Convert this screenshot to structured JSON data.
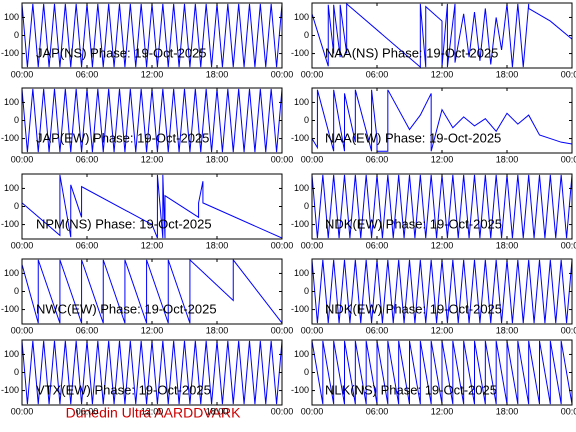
{
  "chart_data": [
    {
      "type": "line",
      "title": "JAP(NS) Phase: 19-Oct-2025",
      "color": "#0000ff",
      "xlim": [
        0,
        24
      ],
      "ylim": [
        -180,
        180
      ],
      "xticks": [
        {
          "value": 0,
          "label": "00:00"
        },
        {
          "value": 6,
          "label": "06:00"
        },
        {
          "value": 12,
          "label": "12:00"
        },
        {
          "value": 18,
          "label": "18:00"
        },
        {
          "value": 24,
          "label": "00:00"
        }
      ],
      "yticks": [
        100,
        0,
        -100
      ],
      "x": [
        0,
        0.5,
        1,
        1.5,
        2,
        2.5,
        3,
        3.5,
        4,
        4.5,
        5,
        5.5,
        6,
        6.5,
        7,
        7.5,
        8,
        8.5,
        9,
        9.5,
        10,
        10.5,
        11,
        11.5,
        12,
        12.5,
        13,
        13.5,
        14,
        14.5,
        15,
        15.5,
        16,
        16.5,
        17,
        17.5,
        18,
        18.5,
        19,
        19.5,
        20,
        20.5,
        21,
        21.5,
        22,
        22.5,
        23,
        23.5,
        24
      ],
      "values": [
        175,
        -175,
        175,
        -175,
        175,
        -175,
        175,
        -175,
        175,
        -175,
        175,
        -175,
        175,
        -175,
        175,
        -175,
        175,
        -175,
        175,
        -175,
        175,
        -175,
        175,
        -175,
        175,
        -175,
        175,
        -175,
        175,
        -175,
        175,
        -175,
        175,
        -175,
        175,
        -175,
        175,
        -175,
        175,
        -175,
        175,
        -175,
        175,
        -175,
        175,
        -175,
        175,
        -175,
        175
      ]
    },
    {
      "type": "line",
      "title": "NAA(NS) Phase: 19-Oct-2025",
      "color": "#0000ff",
      "xlim": [
        0,
        24
      ],
      "ylim": [
        -180,
        180
      ],
      "xticks": [
        {
          "value": 0,
          "label": "00:00"
        },
        {
          "value": 6,
          "label": "06:00"
        },
        {
          "value": 12,
          "label": "12:00"
        },
        {
          "value": 18,
          "label": "18:00"
        },
        {
          "value": 24,
          "label": "00:00"
        }
      ],
      "yticks": [
        100,
        0,
        -100
      ],
      "x": [
        0,
        1.5,
        1.5,
        2,
        2,
        2.6,
        2.6,
        3.2,
        3.2,
        10,
        10,
        10.5,
        10.5,
        12,
        12,
        12.5,
        12.5,
        13.2,
        13.2,
        14,
        14.5,
        15,
        15.5,
        16,
        16.5,
        17,
        17.5,
        18,
        18.5,
        19,
        19.5,
        20,
        20,
        22,
        24
      ],
      "values": [
        120,
        -170,
        170,
        -100,
        170,
        -120,
        170,
        -100,
        175,
        -175,
        175,
        -175,
        160,
        80,
        -175,
        175,
        -175,
        175,
        -150,
        120,
        -120,
        130,
        -140,
        150,
        -160,
        100,
        -80,
        175,
        -175,
        175,
        -175,
        175,
        150,
        80,
        -20
      ]
    },
    {
      "type": "line",
      "title": "JAP(EW) Phase: 19-Oct-2025",
      "color": "#0000ff",
      "xlim": [
        0,
        24
      ],
      "ylim": [
        -180,
        180
      ],
      "xticks": [
        {
          "value": 0,
          "label": "00:00"
        },
        {
          "value": 6,
          "label": "06:00"
        },
        {
          "value": 12,
          "label": "12:00"
        },
        {
          "value": 18,
          "label": "18:00"
        },
        {
          "value": 24,
          "label": "00:00"
        }
      ],
      "yticks": [
        100,
        0,
        -100
      ],
      "x": [
        0,
        0.5,
        1,
        1.5,
        2,
        2.5,
        3,
        3.5,
        4,
        4.5,
        5,
        5.5,
        6,
        6.5,
        7,
        7.5,
        8,
        8.5,
        9,
        9.5,
        10,
        10.5,
        11,
        11.5,
        12,
        12.5,
        13,
        13.5,
        14,
        14.5,
        15,
        15.5,
        16,
        16.5,
        17,
        17.5,
        18,
        18.5,
        19,
        19.5,
        20,
        20.5,
        21,
        21.5,
        22,
        22.5,
        23,
        23.5,
        24
      ],
      "values": [
        175,
        -175,
        175,
        -175,
        175,
        -175,
        175,
        -175,
        175,
        -175,
        175,
        -175,
        175,
        -175,
        175,
        -175,
        175,
        -175,
        175,
        -175,
        175,
        -175,
        175,
        -175,
        175,
        -175,
        175,
        -175,
        175,
        -175,
        175,
        -175,
        175,
        -175,
        175,
        -175,
        175,
        -175,
        175,
        -175,
        175,
        -175,
        175,
        -175,
        175,
        -175,
        175,
        -175,
        175
      ]
    },
    {
      "type": "line",
      "title": "NAA(EW) Phase: 19-Oct-2025",
      "color": "#0000ff",
      "xlim": [
        0,
        24
      ],
      "ylim": [
        -180,
        180
      ],
      "xticks": [
        {
          "value": 0,
          "label": "00:00"
        },
        {
          "value": 6,
          "label": "06:00"
        },
        {
          "value": 12,
          "label": "12:00"
        },
        {
          "value": 18,
          "label": "18:00"
        },
        {
          "value": 24,
          "label": "00:00"
        }
      ],
      "yticks": [
        100,
        0,
        -100
      ],
      "x": [
        0,
        0.5,
        0.5,
        2,
        2,
        3,
        3,
        4,
        4,
        5.5,
        5.5,
        6,
        6,
        7,
        7,
        9,
        10,
        11,
        11,
        12,
        13,
        14,
        15,
        16,
        17,
        18,
        19,
        20,
        21,
        22,
        23,
        24
      ],
      "values": [
        -100,
        -150,
        170,
        -170,
        170,
        -170,
        150,
        -120,
        170,
        -170,
        170,
        -100,
        -170,
        -170,
        170,
        -50,
        30,
        150,
        -170,
        60,
        -40,
        20,
        -30,
        10,
        -60,
        40,
        -20,
        30,
        -80,
        -100,
        -120,
        -130
      ]
    },
    {
      "type": "line",
      "title": "NPM(NS) Phase: 19-Oct-2025",
      "color": "#0000ff",
      "xlim": [
        0,
        24
      ],
      "ylim": [
        -180,
        180
      ],
      "xticks": [
        {
          "value": 0,
          "label": "00:00"
        },
        {
          "value": 6,
          "label": "06:00"
        },
        {
          "value": 12,
          "label": "12:00"
        },
        {
          "value": 18,
          "label": "18:00"
        },
        {
          "value": 24,
          "label": "00:00"
        }
      ],
      "yticks": [
        100,
        0,
        -100
      ],
      "x": [
        0,
        3.5,
        3.5,
        4.5,
        4.5,
        5.5,
        5.5,
        12,
        12.5,
        12.5,
        13,
        13,
        13.2,
        13.2,
        16.3,
        16.3,
        16.7,
        16.7,
        24
      ],
      "values": [
        20,
        -160,
        175,
        -170,
        120,
        -60,
        110,
        -100,
        -175,
        175,
        -175,
        175,
        -175,
        60,
        -60,
        20,
        140,
        20,
        -175
      ]
    },
    {
      "type": "line",
      "title": "NDK(EW) Phase: 19-Oct-2025",
      "color": "#0000ff",
      "xlim": [
        0,
        24
      ],
      "ylim": [
        -180,
        180
      ],
      "xticks": [
        {
          "value": 0,
          "label": "00:00"
        },
        {
          "value": 6,
          "label": "06:00"
        },
        {
          "value": 12,
          "label": "12:00"
        },
        {
          "value": 18,
          "label": "18:00"
        },
        {
          "value": 24,
          "label": "00:00"
        }
      ],
      "yticks": [
        100,
        0,
        -100
      ],
      "x": [
        0,
        0.5,
        1,
        1.5,
        2,
        2.5,
        3,
        3.5,
        4,
        4.5,
        5,
        5.5,
        6,
        6.5,
        7,
        7.5,
        8,
        8.5,
        9,
        9.5,
        10,
        10.5,
        11,
        11.5,
        12,
        12.5,
        13,
        13.5,
        14,
        14.5,
        15,
        15.5,
        16,
        16.5,
        17,
        17.5,
        18,
        18.5,
        19,
        19.5,
        20,
        20.5,
        21,
        21.5,
        22,
        22.5,
        23,
        23.5,
        24
      ],
      "values": [
        175,
        -175,
        175,
        -175,
        175,
        -175,
        175,
        -175,
        175,
        -175,
        175,
        -175,
        175,
        -175,
        175,
        -175,
        175,
        -175,
        175,
        -175,
        175,
        -175,
        175,
        -175,
        175,
        -175,
        175,
        -175,
        175,
        -175,
        175,
        -175,
        175,
        -175,
        175,
        -175,
        175,
        -175,
        175,
        -175,
        175,
        -175,
        175,
        -175,
        175,
        -175,
        175,
        -175,
        175
      ]
    },
    {
      "type": "line",
      "title": "NWC(EW) Phase: 19-Oct-2025",
      "color": "#0000ff",
      "xlim": [
        0,
        24
      ],
      "ylim": [
        -180,
        180
      ],
      "xticks": [
        {
          "value": 0,
          "label": "00:00"
        },
        {
          "value": 6,
          "label": "06:00"
        },
        {
          "value": 12,
          "label": "12:00"
        },
        {
          "value": 18,
          "label": "18:00"
        },
        {
          "value": 24,
          "label": "00:00"
        }
      ],
      "yticks": [
        100,
        0,
        -100
      ],
      "x": [
        0,
        1.5,
        1.5,
        3.5,
        3.5,
        5.5,
        5.5,
        7.5,
        7.5,
        9.5,
        9.5,
        11.5,
        11.5,
        13.5,
        13.5,
        15.5,
        15.5,
        19.5,
        19.5,
        24
      ],
      "values": [
        150,
        -175,
        175,
        -175,
        175,
        -175,
        175,
        -175,
        175,
        -175,
        175,
        -175,
        175,
        -175,
        175,
        -175,
        175,
        -50,
        175,
        -175
      ]
    },
    {
      "type": "line",
      "title": "NDK(EW) Phase: 19-Oct-2025",
      "color": "#0000ff",
      "xlim": [
        0,
        24
      ],
      "ylim": [
        -180,
        180
      ],
      "xticks": [
        {
          "value": 0,
          "label": "00:00"
        },
        {
          "value": 6,
          "label": "06:00"
        },
        {
          "value": 12,
          "label": "12:00"
        },
        {
          "value": 18,
          "label": "18:00"
        },
        {
          "value": 24,
          "label": "00:00"
        }
      ],
      "yticks": [
        100,
        0,
        -100
      ],
      "x": [
        0,
        0.5,
        1,
        1.5,
        2,
        2.5,
        3,
        3.5,
        4,
        4.5,
        5,
        5.5,
        6,
        6.5,
        7,
        7.5,
        8,
        8.5,
        9,
        9.5,
        10,
        10.5,
        11,
        11.5,
        12,
        12.5,
        13,
        13.5,
        14,
        14.5,
        15,
        15.5,
        16,
        16.5,
        17,
        17.5,
        18,
        18.5,
        19,
        19.5,
        20,
        20.5,
        21,
        21.5,
        22,
        22.5,
        23,
        23.5,
        24
      ],
      "values": [
        175,
        -175,
        175,
        -175,
        175,
        -175,
        175,
        -175,
        175,
        -175,
        175,
        -175,
        175,
        -175,
        175,
        -175,
        175,
        -175,
        175,
        -175,
        175,
        -175,
        175,
        -175,
        175,
        -175,
        175,
        -175,
        175,
        -175,
        175,
        -175,
        175,
        -175,
        175,
        -175,
        175,
        -175,
        175,
        -175,
        175,
        -175,
        175,
        -175,
        175,
        -175,
        175,
        -175,
        175
      ]
    },
    {
      "type": "line",
      "title": "VTX(EW) Phase: 19-Oct-2025",
      "color": "#0000ff",
      "xlim": [
        0,
        24
      ],
      "ylim": [
        -180,
        180
      ],
      "xticks": [
        {
          "value": 0,
          "label": "00:00"
        },
        {
          "value": 6,
          "label": "06:00"
        },
        {
          "value": 12,
          "label": "12:00"
        },
        {
          "value": 18,
          "label": "18:00"
        },
        {
          "value": 24,
          "label": "00:00"
        }
      ],
      "yticks": [
        100,
        0,
        -100
      ],
      "x": [
        0,
        0.5,
        1,
        1.5,
        2,
        2.5,
        3,
        3.5,
        4,
        4.5,
        5,
        5.5,
        6,
        6.5,
        7,
        7.5,
        8,
        8.5,
        9,
        9.5,
        10,
        10.5,
        11,
        11.5,
        12,
        12.5,
        13,
        13.5,
        14,
        14.5,
        15,
        15.5,
        16,
        16.5,
        17,
        17.5,
        18,
        18.5,
        19,
        19.5,
        20,
        20.5,
        21,
        21.5,
        22,
        22.5,
        23,
        23.5,
        24
      ],
      "values": [
        175,
        -175,
        175,
        -175,
        175,
        -175,
        175,
        -175,
        175,
        -175,
        175,
        -175,
        175,
        -175,
        175,
        -175,
        175,
        -175,
        175,
        -175,
        175,
        -175,
        175,
        -175,
        175,
        -175,
        175,
        -175,
        175,
        -175,
        175,
        -175,
        175,
        -175,
        175,
        -175,
        175,
        -175,
        175,
        -175,
        175,
        -175,
        175,
        -175,
        175,
        -175,
        175,
        -175,
        175
      ]
    },
    {
      "type": "line",
      "title": "NLK(NS) Phase: 19-Oct-2025",
      "color": "#0000ff",
      "xlim": [
        0,
        24
      ],
      "ylim": [
        -180,
        180
      ],
      "xticks": [
        {
          "value": 0,
          "label": "00:00"
        },
        {
          "value": 6,
          "label": "06:00"
        },
        {
          "value": 12,
          "label": "12:00"
        },
        {
          "value": 18,
          "label": "18:00"
        },
        {
          "value": 24,
          "label": "00:00"
        }
      ],
      "yticks": [
        100,
        0,
        -100
      ],
      "x": [
        0,
        1,
        1,
        2,
        2,
        3,
        3,
        4,
        4,
        5,
        5,
        6,
        6,
        7,
        7,
        8,
        8,
        9,
        9,
        10,
        10,
        11,
        11,
        12,
        12,
        13,
        13,
        14,
        14,
        15,
        15,
        16,
        16,
        17,
        17,
        18,
        18,
        19,
        19,
        20,
        20,
        21,
        21,
        22,
        22,
        23,
        23,
        24
      ],
      "values": [
        175,
        -175,
        175,
        -175,
        175,
        -175,
        175,
        -175,
        175,
        -175,
        175,
        -175,
        175,
        -175,
        175,
        -175,
        175,
        -175,
        175,
        -175,
        175,
        -175,
        175,
        -175,
        175,
        -175,
        175,
        -175,
        175,
        -175,
        175,
        -175,
        175,
        -175,
        175,
        -175,
        175,
        -175,
        175,
        -175,
        175,
        -175,
        175,
        -175,
        175,
        -175,
        175,
        -175
      ]
    }
  ],
  "footer": "Dunedin Ultra AARDDVARK"
}
